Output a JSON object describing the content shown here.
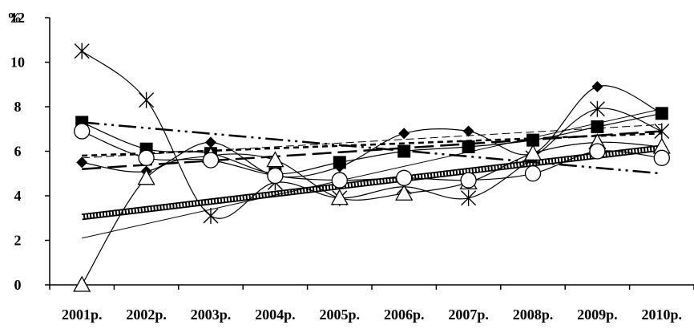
{
  "chart_data": {
    "type": "line",
    "ylabel": "%",
    "ylim": [
      0,
      12
    ],
    "yticks": [
      0,
      2,
      4,
      6,
      8,
      10,
      12
    ],
    "grid": false,
    "legend": "none",
    "categories": [
      "2001р.",
      "2002р.",
      "2003р.",
      "2004р.",
      "2005р.",
      "2006р.",
      "2007р.",
      "2008р.",
      "2009р.",
      "2010р."
    ],
    "series": [
      {
        "marker": "star",
        "smooth": true,
        "values": [
          10.5,
          8.3,
          3.1,
          4.6,
          3.9,
          4.4,
          3.9,
          5.7,
          7.9,
          6.9
        ]
      },
      {
        "marker": "diamond",
        "smooth": true,
        "values": [
          5.5,
          5.1,
          6.4,
          4.9,
          5.3,
          6.8,
          6.9,
          5.9,
          8.9,
          7.7
        ]
      },
      {
        "marker": "square",
        "smooth": true,
        "values": [
          7.3,
          6.1,
          5.9,
          5.0,
          5.5,
          6.0,
          6.2,
          6.5,
          7.1,
          7.7
        ]
      },
      {
        "marker": "triangle",
        "smooth": true,
        "values": [
          0,
          4.8,
          5.8,
          5.6,
          3.9,
          4.1,
          4.6,
          5.9,
          6.4,
          6.2
        ]
      },
      {
        "marker": "circle",
        "smooth": true,
        "values": [
          6.9,
          5.7,
          5.6,
          4.9,
          4.7,
          4.8,
          4.7,
          5.0,
          6.0,
          5.7
        ]
      }
    ],
    "trendlines": [
      {
        "style": "thick-dotted",
        "values": [
          3.05,
          6.15
        ]
      },
      {
        "style": "thin-solid",
        "values": [
          2.1,
          7.9
        ]
      },
      {
        "style": "dash-dot",
        "values": [
          7.3,
          5.0
        ]
      },
      {
        "style": "long-dash",
        "values": [
          5.2,
          6.9
        ]
      },
      {
        "style": "dashed",
        "values": [
          5.7,
          7.2
        ]
      },
      {
        "style": "short-dash",
        "values": [
          5.8,
          6.8
        ]
      }
    ]
  },
  "colors": {
    "line": "#000000",
    "background": "#ffffff",
    "trend_dotted_fill": "#999999"
  }
}
